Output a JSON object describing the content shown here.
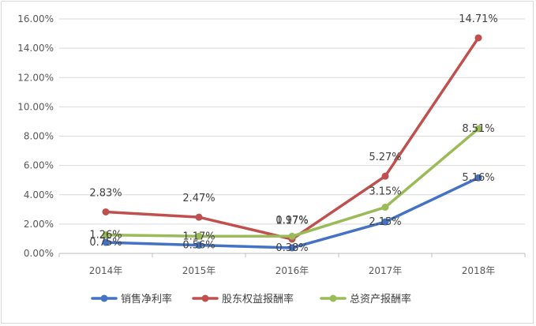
{
  "chart_data": {
    "type": "line",
    "title": "",
    "xlabel": "",
    "ylabel": "",
    "categories": [
      "2014年",
      "2015年",
      "2016年",
      "2017年",
      "2018年"
    ],
    "ylim": [
      0,
      16
    ],
    "yticks": [
      "0.00%",
      "2.00%",
      "4.00%",
      "6.00%",
      "8.00%",
      "10.00%",
      "12.00%",
      "14.00%",
      "16.00%"
    ],
    "series": [
      {
        "name": "销售净利率",
        "color": "#4472c4",
        "values": [
          0.75,
          0.56,
          0.38,
          2.15,
          5.16
        ],
        "labels": [
          "0.75%",
          "0.56%",
          "0.38%",
          "2.15%",
          "5.16%"
        ]
      },
      {
        "name": "股东权益报酬率",
        "color": "#c0504d",
        "values": [
          2.83,
          2.47,
          0.97,
          5.27,
          14.71
        ],
        "labels": [
          "2.83%",
          "2.47%",
          "0.97%",
          "5.27%",
          "14.71%"
        ]
      },
      {
        "name": "总资产报酬率",
        "color": "#9bbb59",
        "values": [
          1.26,
          1.17,
          1.17,
          3.15,
          8.51
        ],
        "labels": [
          "1.26%",
          "1.17%",
          "1.17%",
          "3.15%",
          "8.51%"
        ]
      }
    ],
    "legend_position": "bottom"
  }
}
